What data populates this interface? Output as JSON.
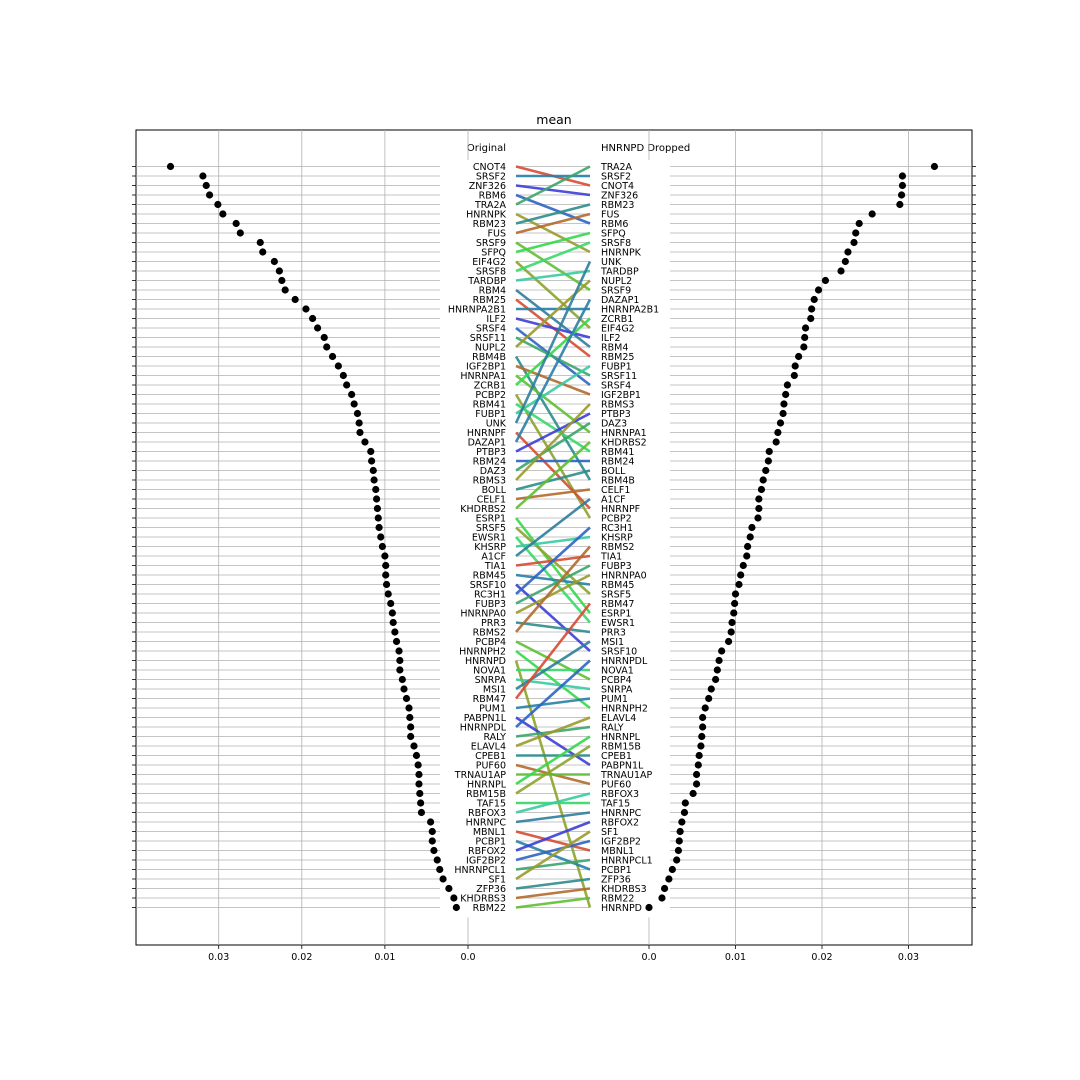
{
  "chart_data": {
    "type": "slope",
    "title": "mean",
    "left_header": "Original",
    "right_header": "HNRNPD Dropped",
    "left_xticks": [
      "0.03",
      "0.02",
      "0.01",
      "0.0"
    ],
    "right_xticks": [
      "0.0",
      "0.01",
      "0.02",
      "0.03"
    ],
    "grid": true,
    "left_series": [
      {
        "name": "CNOT4",
        "value": 0.0358
      },
      {
        "name": "SRSF2",
        "value": 0.0319
      },
      {
        "name": "ZNF326",
        "value": 0.0315
      },
      {
        "name": "RBM6",
        "value": 0.0311
      },
      {
        "name": "TRA2A",
        "value": 0.0301
      },
      {
        "name": "HNRNPK",
        "value": 0.0295
      },
      {
        "name": "RBM23",
        "value": 0.0279
      },
      {
        "name": "FUS",
        "value": 0.0274
      },
      {
        "name": "SRSF9",
        "value": 0.025
      },
      {
        "name": "SFPQ",
        "value": 0.0247
      },
      {
        "name": "EIF4G2",
        "value": 0.0233
      },
      {
        "name": "SRSF8",
        "value": 0.0227
      },
      {
        "name": "TARDBP",
        "value": 0.0224
      },
      {
        "name": "RBM4",
        "value": 0.022
      },
      {
        "name": "RBM25",
        "value": 0.0208
      },
      {
        "name": "HNRNPA2B1",
        "value": 0.0195
      },
      {
        "name": "ILF2",
        "value": 0.0187
      },
      {
        "name": "SRSF4",
        "value": 0.0181
      },
      {
        "name": "SRSF11",
        "value": 0.0173
      },
      {
        "name": "NUPL2",
        "value": 0.017
      },
      {
        "name": "RBM4B",
        "value": 0.0163
      },
      {
        "name": "IGF2BP1",
        "value": 0.0156
      },
      {
        "name": "HNRNPA1",
        "value": 0.015
      },
      {
        "name": "ZCRB1",
        "value": 0.0146
      },
      {
        "name": "PCBP2",
        "value": 0.014
      },
      {
        "name": "RBM41",
        "value": 0.0137
      },
      {
        "name": "FUBP1",
        "value": 0.0133
      },
      {
        "name": "UNK",
        "value": 0.0131
      },
      {
        "name": "HNRNPF",
        "value": 0.013
      },
      {
        "name": "DAZAP1",
        "value": 0.0124
      },
      {
        "name": "PTBP3",
        "value": 0.0117
      },
      {
        "name": "RBM24",
        "value": 0.0116
      },
      {
        "name": "DAZ3",
        "value": 0.0114
      },
      {
        "name": "RBMS3",
        "value": 0.0113
      },
      {
        "name": "BOLL",
        "value": 0.0111
      },
      {
        "name": "CELF1",
        "value": 0.011
      },
      {
        "name": "KHDRBS2",
        "value": 0.0109
      },
      {
        "name": "ESRP1",
        "value": 0.0108
      },
      {
        "name": "SRSF5",
        "value": 0.0107
      },
      {
        "name": "EWSR1",
        "value": 0.0105
      },
      {
        "name": "KHSRP",
        "value": 0.0103
      },
      {
        "name": "A1CF",
        "value": 0.01
      },
      {
        "name": "TIA1",
        "value": 0.0099
      },
      {
        "name": "RBM45",
        "value": 0.0099
      },
      {
        "name": "SRSF10",
        "value": 0.0098
      },
      {
        "name": "RC3H1",
        "value": 0.0096
      },
      {
        "name": "FUBP3",
        "value": 0.0093
      },
      {
        "name": "HNRNPA0",
        "value": 0.0091
      },
      {
        "name": "PRR3",
        "value": 0.009
      },
      {
        "name": "RBMS2",
        "value": 0.0088
      },
      {
        "name": "PCBP4",
        "value": 0.0086
      },
      {
        "name": "HNRNPH2",
        "value": 0.0083
      },
      {
        "name": "HNRNPD",
        "value": 0.0082
      },
      {
        "name": "NOVA1",
        "value": 0.0082
      },
      {
        "name": "SNRPA",
        "value": 0.0079
      },
      {
        "name": "MSI1",
        "value": 0.0077
      },
      {
        "name": "RBM47",
        "value": 0.0074
      },
      {
        "name": "PUM1",
        "value": 0.0071
      },
      {
        "name": "PABPN1L",
        "value": 0.007
      },
      {
        "name": "HNRNPDL",
        "value": 0.0069
      },
      {
        "name": "RALY",
        "value": 0.0069
      },
      {
        "name": "ELAVL4",
        "value": 0.0065
      },
      {
        "name": "CPEB1",
        "value": 0.0062
      },
      {
        "name": "PUF60",
        "value": 0.006
      },
      {
        "name": "TRNAU1AP",
        "value": 0.0059
      },
      {
        "name": "HNRNPL",
        "value": 0.0059
      },
      {
        "name": "RBM15B",
        "value": 0.0058
      },
      {
        "name": "TAF15",
        "value": 0.0057
      },
      {
        "name": "RBFOX3",
        "value": 0.0056
      },
      {
        "name": "HNRNPC",
        "value": 0.0045
      },
      {
        "name": "MBNL1",
        "value": 0.0043
      },
      {
        "name": "PCBP1",
        "value": 0.0043
      },
      {
        "name": "RBFOX2",
        "value": 0.0041
      },
      {
        "name": "IGF2BP2",
        "value": 0.0037
      },
      {
        "name": "HNRNPCL1",
        "value": 0.0034
      },
      {
        "name": "SF1",
        "value": 0.003
      },
      {
        "name": "ZFP36",
        "value": 0.0023
      },
      {
        "name": "KHDRBS3",
        "value": 0.0017
      },
      {
        "name": "RBM22",
        "value": 0.0014
      }
    ],
    "right_series": [
      {
        "name": "TRA2A",
        "value": 0.033
      },
      {
        "name": "SRSF2",
        "value": 0.0293
      },
      {
        "name": "CNOT4",
        "value": 0.0293
      },
      {
        "name": "ZNF326",
        "value": 0.0292
      },
      {
        "name": "RBM23",
        "value": 0.029
      },
      {
        "name": "FUS",
        "value": 0.0258
      },
      {
        "name": "RBM6",
        "value": 0.0243
      },
      {
        "name": "SFPQ",
        "value": 0.0239
      },
      {
        "name": "SRSF8",
        "value": 0.0237
      },
      {
        "name": "HNRNPK",
        "value": 0.023
      },
      {
        "name": "UNK",
        "value": 0.0227
      },
      {
        "name": "TARDBP",
        "value": 0.0222
      },
      {
        "name": "NUPL2",
        "value": 0.0204
      },
      {
        "name": "SRSF9",
        "value": 0.0196
      },
      {
        "name": "DAZAP1",
        "value": 0.0191
      },
      {
        "name": "HNRNPA2B1",
        "value": 0.0188
      },
      {
        "name": "ZCRB1",
        "value": 0.0187
      },
      {
        "name": "EIF4G2",
        "value": 0.0181
      },
      {
        "name": "ILF2",
        "value": 0.018
      },
      {
        "name": "RBM4",
        "value": 0.0179
      },
      {
        "name": "RBM25",
        "value": 0.0173
      },
      {
        "name": "FUBP1",
        "value": 0.0169
      },
      {
        "name": "SRSF11",
        "value": 0.0168
      },
      {
        "name": "SRSF4",
        "value": 0.016
      },
      {
        "name": "IGF2BP1",
        "value": 0.0158
      },
      {
        "name": "RBMS3",
        "value": 0.0156
      },
      {
        "name": "PTBP3",
        "value": 0.0155
      },
      {
        "name": "DAZ3",
        "value": 0.0152
      },
      {
        "name": "HNRNPA1",
        "value": 0.0149
      },
      {
        "name": "KHDRBS2",
        "value": 0.0147
      },
      {
        "name": "RBM41",
        "value": 0.0139
      },
      {
        "name": "RBM24",
        "value": 0.0138
      },
      {
        "name": "BOLL",
        "value": 0.0135
      },
      {
        "name": "RBM4B",
        "value": 0.0132
      },
      {
        "name": "CELF1",
        "value": 0.013
      },
      {
        "name": "A1CF",
        "value": 0.0127
      },
      {
        "name": "HNRNPF",
        "value": 0.0127
      },
      {
        "name": "PCBP2",
        "value": 0.0126
      },
      {
        "name": "RC3H1",
        "value": 0.0119
      },
      {
        "name": "KHSRP",
        "value": 0.0117
      },
      {
        "name": "RBMS2",
        "value": 0.0114
      },
      {
        "name": "TIA1",
        "value": 0.0113
      },
      {
        "name": "FUBP3",
        "value": 0.0109
      },
      {
        "name": "HNRNPA0",
        "value": 0.0106
      },
      {
        "name": "RBM45",
        "value": 0.0104
      },
      {
        "name": "SRSF5",
        "value": 0.01
      },
      {
        "name": "RBM47",
        "value": 0.0099
      },
      {
        "name": "ESRP1",
        "value": 0.0098
      },
      {
        "name": "EWSR1",
        "value": 0.0096
      },
      {
        "name": "PRR3",
        "value": 0.0095
      },
      {
        "name": "MSI1",
        "value": 0.0092
      },
      {
        "name": "SRSF10",
        "value": 0.0084
      },
      {
        "name": "HNRNPDL",
        "value": 0.0081
      },
      {
        "name": "NOVA1",
        "value": 0.0079
      },
      {
        "name": "PCBP4",
        "value": 0.0077
      },
      {
        "name": "SNRPA",
        "value": 0.0072
      },
      {
        "name": "PUM1",
        "value": 0.0069
      },
      {
        "name": "HNRNPH2",
        "value": 0.0065
      },
      {
        "name": "ELAVL4",
        "value": 0.0062
      },
      {
        "name": "RALY",
        "value": 0.0062
      },
      {
        "name": "HNRNPL",
        "value": 0.0061
      },
      {
        "name": "RBM15B",
        "value": 0.006
      },
      {
        "name": "CPEB1",
        "value": 0.0058
      },
      {
        "name": "PABPN1L",
        "value": 0.0057
      },
      {
        "name": "TRNAU1AP",
        "value": 0.0055
      },
      {
        "name": "PUF60",
        "value": 0.0055
      },
      {
        "name": "RBFOX3",
        "value": 0.0051
      },
      {
        "name": "TAF15",
        "value": 0.0042
      },
      {
        "name": "HNRNPC",
        "value": 0.0041
      },
      {
        "name": "RBFOX2",
        "value": 0.0038
      },
      {
        "name": "SF1",
        "value": 0.0036
      },
      {
        "name": "IGF2BP2",
        "value": 0.0035
      },
      {
        "name": "MBNL1",
        "value": 0.0034
      },
      {
        "name": "HNRNPCL1",
        "value": 0.0032
      },
      {
        "name": "PCBP1",
        "value": 0.0027
      },
      {
        "name": "ZFP36",
        "value": 0.0023
      },
      {
        "name": "KHDRBS3",
        "value": 0.0018
      },
      {
        "name": "RBM22",
        "value": 0.0015
      },
      {
        "name": "HNRNPD",
        "value": 0.0
      }
    ],
    "line_colors": [
      "#d84b33",
      "#2a7fa8",
      "#3c3ed8",
      "#2c64c4",
      "#3aa56a",
      "#9a9a2c",
      "#2e8c8c",
      "#b36a2c",
      "#5fbf33",
      "#35d84a",
      "#8ca42c",
      "#3bd86b",
      "#3acaa0",
      "#2f7d9c"
    ]
  }
}
